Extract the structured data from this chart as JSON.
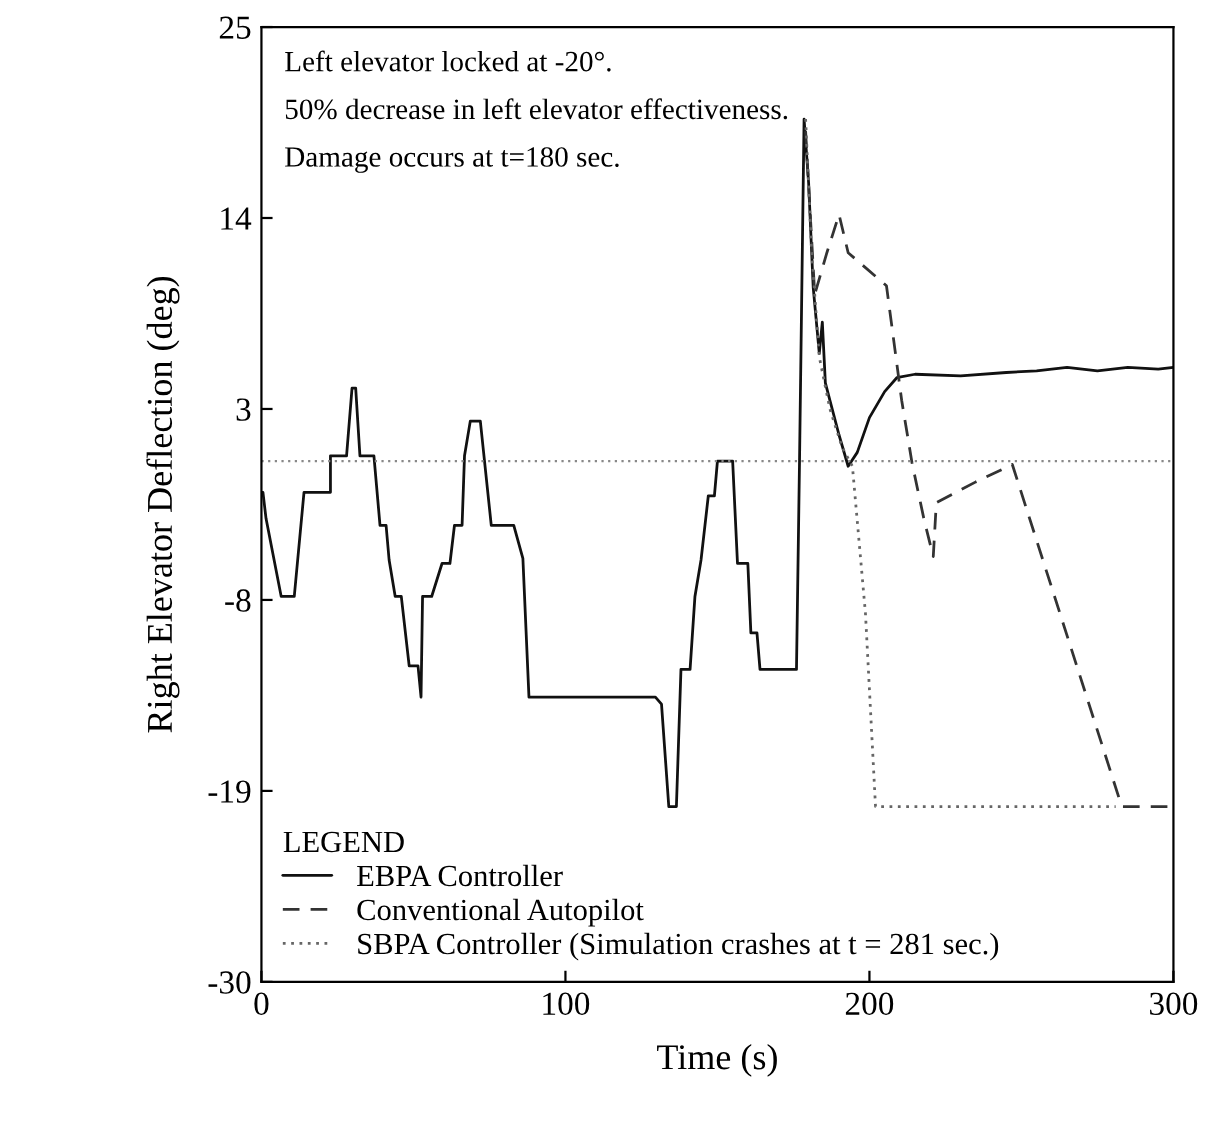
{
  "chart_data": {
    "type": "line",
    "xlabel": "Time (s)",
    "ylabel": "Right Elevator Deflection (deg)",
    "xlim": [
      0,
      300
    ],
    "xticks": [
      0,
      100,
      200,
      300
    ],
    "ylim": [
      -30,
      25
    ],
    "yticks": [
      -30,
      -19,
      -8,
      3,
      14,
      25
    ],
    "grid": false,
    "legend": "bottom left",
    "legend_title": "LEGEND",
    "marker": "none",
    "annotations": [
      "Left elevator locked at -20°.",
      "50% decrease in left elevator effectiveness.",
      "Damage occurs at t=180 sec."
    ],
    "ref_lines": [
      {
        "axis": "y",
        "value": 0,
        "label": null,
        "color": "#888888",
        "line_style": "dotted"
      }
    ],
    "series": [
      {
        "name": "EBPA Controller",
        "color": "#111111",
        "line_style": "solid",
        "x": [
          0,
          0.5,
          1.5,
          6.5,
          10.8,
          14,
          22.7,
          22.7,
          28,
          29.8,
          31,
          32.4,
          37,
          39,
          41,
          42,
          44,
          46,
          48.6,
          51.5,
          52.5,
          53,
          56,
          59.4,
          62,
          63.5,
          66,
          66.8,
          68.7,
          72,
          75.6,
          83,
          86,
          88,
          129.6,
          131.6,
          134,
          136.5,
          138,
          141,
          142.6,
          144.6,
          147,
          149,
          150,
          155,
          156.6,
          160,
          161,
          163,
          164,
          176,
          177,
          178.5,
          180,
          181.5,
          183.5,
          184.5,
          185.5,
          187,
          190,
          193,
          196,
          200,
          205,
          209,
          215,
          230,
          245,
          255,
          265,
          275,
          285,
          295,
          300
        ],
        "values": [
          -1.8,
          -1.8,
          -3.3,
          -7.8,
          -7.8,
          -1.8,
          -1.8,
          0.3,
          0.3,
          4.2,
          4.2,
          0.3,
          0.3,
          -3.7,
          -3.7,
          -5.7,
          -7.8,
          -7.8,
          -11.8,
          -11.8,
          -13.6,
          -7.8,
          -7.8,
          -5.9,
          -5.9,
          -3.7,
          -3.7,
          0.3,
          2.3,
          2.3,
          -3.7,
          -3.7,
          -5.6,
          -13.6,
          -13.6,
          -14,
          -19.9,
          -19.9,
          -12,
          -12,
          -7.8,
          -5.7,
          -2,
          -2,
          0,
          0,
          -5.9,
          -5.9,
          -9.9,
          -9.9,
          -12,
          -12,
          0,
          19.7,
          16,
          10,
          6.2,
          8,
          4.5,
          3.5,
          1.5,
          -0.3,
          0.5,
          2.5,
          4,
          4.8,
          5,
          4.9,
          5.1,
          5.2,
          5.4,
          5.2,
          5.4,
          5.3,
          5.4
        ]
      },
      {
        "name": "Conventional Autopilot",
        "color": "#333333",
        "line_style": "dashed",
        "x": [
          179,
          182,
          186,
          190,
          193,
          205.6,
          210.6,
          214,
          218,
          221,
          222,
          235,
          247,
          283,
          300
        ],
        "values": [
          19,
          9.6,
          12,
          14.2,
          12,
          10.1,
          3.5,
          -0.1,
          -3.4,
          -5.5,
          -2.4,
          -1.2,
          -0.2,
          -19.9,
          -19.9
        ]
      },
      {
        "name": "SBPA Controller (Simulation crashes at t = 281 sec.)",
        "color": "#666666",
        "line_style": "dotted",
        "x": [
          179,
          181,
          183.5,
          187,
          191,
          194.4,
          198.7,
          202,
          281
        ],
        "values": [
          19.7,
          12,
          6,
          3,
          0.8,
          -0.3,
          -8.8,
          -19.9,
          -19.9
        ]
      }
    ]
  }
}
